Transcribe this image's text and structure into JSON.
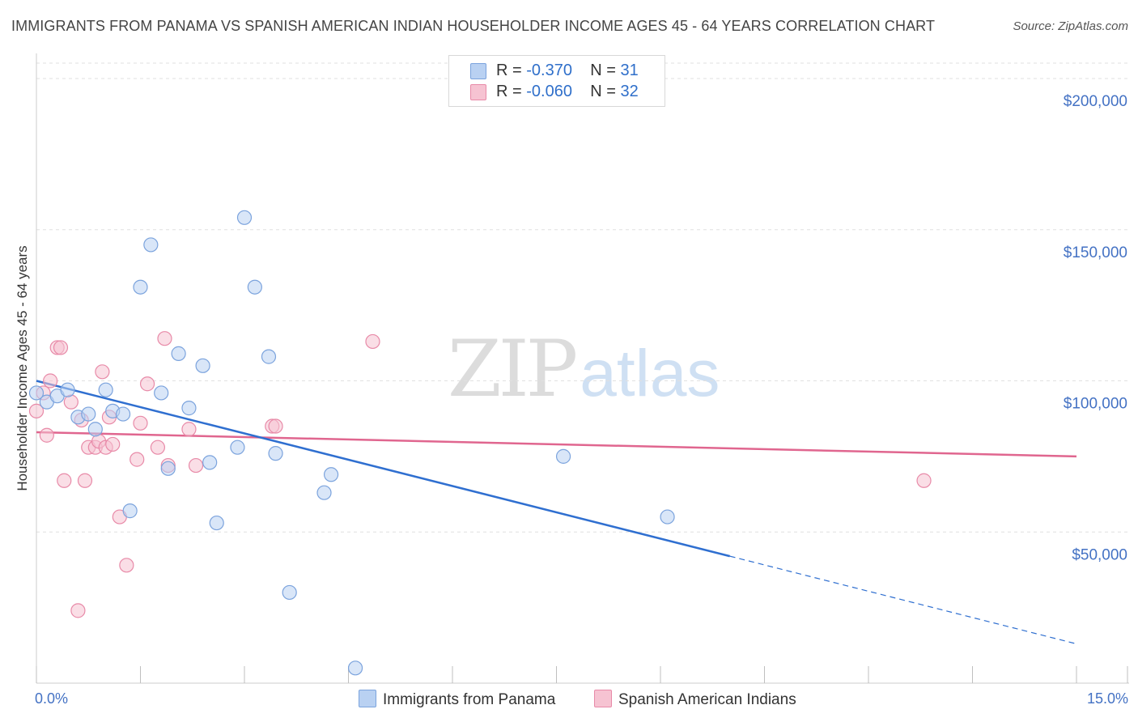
{
  "title": "IMMIGRANTS FROM PANAMA VS SPANISH AMERICAN INDIAN HOUSEHOLDER INCOME AGES 45 - 64 YEARS CORRELATION CHART",
  "source": "Source: ZipAtlas.com",
  "watermark": {
    "zip": "ZIP",
    "atlas": "atlas"
  },
  "colors": {
    "blue_fill": "#b9d1f2",
    "blue_stroke": "#7ba3dd",
    "blue_line": "#2f6fd0",
    "pink_fill": "#f6c3d2",
    "pink_stroke": "#e88aa8",
    "pink_line": "#e0668f",
    "axis_text": "#4472c4",
    "grid": "#e0e0e0"
  },
  "legend_top": {
    "rows": [
      {
        "r_label": "R = ",
        "r_value": "-0.370",
        "n_label": "N = ",
        "n_value": "31"
      },
      {
        "r_label": "R = ",
        "r_value": "-0.060",
        "n_label": "N = ",
        "n_value": "32"
      }
    ]
  },
  "legend_bottom": {
    "series1": "Immigrants from Panama",
    "series2": "Spanish American Indians"
  },
  "chart_data": {
    "type": "scatter",
    "title": "IMMIGRANTS FROM PANAMA VS SPANISH AMERICAN INDIAN HOUSEHOLDER INCOME AGES 45 - 64 YEARS CORRELATION CHART",
    "xlabel": "",
    "ylabel": "Householder Income Ages 45 - 64 years",
    "xlim": [
      0,
      15
    ],
    "ylim": [
      0,
      200000
    ],
    "x_tick_labels": [
      "0.0%",
      "15.0%"
    ],
    "y_ticks": [
      50000,
      100000,
      150000,
      200000
    ],
    "y_tick_labels": [
      "$50,000",
      "$100,000",
      "$150,000",
      "$200,000"
    ],
    "grid": true,
    "series": [
      {
        "name": "Immigrants from Panama",
        "R": -0.37,
        "N": 31,
        "points": [
          [
            0.0,
            96000
          ],
          [
            0.15,
            93000
          ],
          [
            0.3,
            95000
          ],
          [
            0.45,
            97000
          ],
          [
            0.6,
            88000
          ],
          [
            0.75,
            89000
          ],
          [
            0.85,
            84000
          ],
          [
            1.0,
            97000
          ],
          [
            1.1,
            90000
          ],
          [
            1.25,
            89000
          ],
          [
            1.35,
            57000
          ],
          [
            1.5,
            131000
          ],
          [
            1.65,
            145000
          ],
          [
            1.8,
            96000
          ],
          [
            1.9,
            71000
          ],
          [
            2.05,
            109000
          ],
          [
            2.2,
            91000
          ],
          [
            2.4,
            105000
          ],
          [
            2.5,
            73000
          ],
          [
            2.6,
            53000
          ],
          [
            2.9,
            78000
          ],
          [
            3.0,
            154000
          ],
          [
            3.15,
            131000
          ],
          [
            3.35,
            108000
          ],
          [
            3.45,
            76000
          ],
          [
            3.65,
            30000
          ],
          [
            4.15,
            63000
          ],
          [
            4.25,
            69000
          ],
          [
            4.6,
            5000
          ],
          [
            7.6,
            75000
          ],
          [
            9.1,
            55000
          ]
        ],
        "trend": {
          "solid_x": [
            0.0,
            10.0
          ],
          "solid_y": [
            100000,
            42000
          ],
          "dashed_x": [
            10.0,
            15.0
          ],
          "dashed_y": [
            42000,
            13000
          ]
        }
      },
      {
        "name": "Spanish American Indians",
        "R": -0.06,
        "N": 32,
        "points": [
          [
            0.0,
            90000
          ],
          [
            0.1,
            96000
          ],
          [
            0.15,
            82000
          ],
          [
            0.2,
            100000
          ],
          [
            0.3,
            111000
          ],
          [
            0.35,
            111000
          ],
          [
            0.4,
            67000
          ],
          [
            0.5,
            93000
          ],
          [
            0.6,
            24000
          ],
          [
            0.65,
            87000
          ],
          [
            0.7,
            67000
          ],
          [
            0.75,
            78000
          ],
          [
            0.85,
            78000
          ],
          [
            0.9,
            80000
          ],
          [
            0.95,
            103000
          ],
          [
            1.0,
            78000
          ],
          [
            1.05,
            88000
          ],
          [
            1.1,
            79000
          ],
          [
            1.2,
            55000
          ],
          [
            1.3,
            39000
          ],
          [
            1.45,
            74000
          ],
          [
            1.5,
            86000
          ],
          [
            1.6,
            99000
          ],
          [
            1.75,
            78000
          ],
          [
            1.85,
            114000
          ],
          [
            1.9,
            72000
          ],
          [
            2.2,
            84000
          ],
          [
            2.3,
            72000
          ],
          [
            3.4,
            85000
          ],
          [
            3.45,
            85000
          ],
          [
            4.85,
            113000
          ],
          [
            12.8,
            67000
          ]
        ],
        "trend": {
          "solid_x": [
            0.0,
            15.0
          ],
          "solid_y": [
            83000,
            75000
          ]
        }
      }
    ]
  }
}
